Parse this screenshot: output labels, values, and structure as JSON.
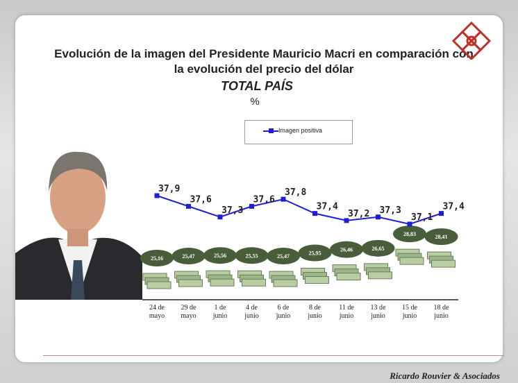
{
  "title_line1": "Evolución de la imagen del Presidente Mauricio Macri en comparación con",
  "title_line2": "la evolución del precio del dólar",
  "subtitle": "TOTAL PAÍS",
  "unit": "%",
  "footer": "Ricardo Rouvier & Asociados",
  "colors": {
    "line": "#1f1fd0",
    "oval": "#4a5d3a",
    "logo": "#c0302a"
  },
  "chart_data": {
    "type": "line",
    "categories": [
      "24 de mayo",
      "29 de mayo",
      "1 de junio",
      "4 de junio",
      "6 de junio",
      "8 de junio",
      "11 de junio",
      "13 de junio",
      "15 de junio",
      "18 de junio"
    ],
    "series": [
      {
        "name": "Imagen positiva",
        "values": [
          37.9,
          37.6,
          37.3,
          37.6,
          37.8,
          37.4,
          37.2,
          37.3,
          37.1,
          37.4
        ],
        "labels": [
          "37,9",
          "37,6",
          "37,3",
          "37,6",
          "37,8",
          "37,4",
          "37,2",
          "37,3",
          "37,1",
          "37,4"
        ]
      },
      {
        "values": [
          25.16,
          25.47,
          25.56,
          25.55,
          25.47,
          25.95,
          26.46,
          26.65,
          28.83,
          28.41
        ],
        "labels": [
          "25,16",
          "25,47",
          "25,56",
          "25,55",
          "25,47",
          "25,95",
          "26,46",
          "26,65",
          "28,83",
          "28,41"
        ]
      }
    ],
    "legend": "top"
  }
}
